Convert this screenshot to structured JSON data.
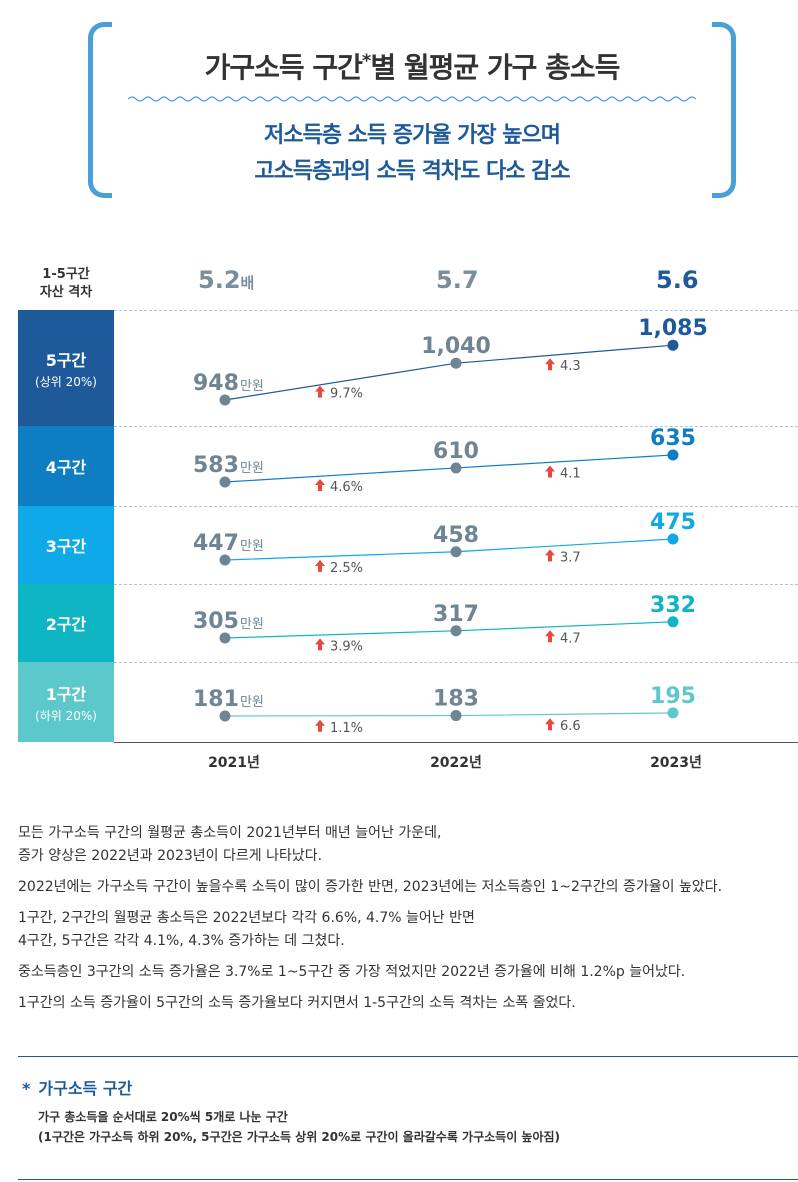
{
  "header": {
    "title_main": "가구소득 구간",
    "title_star": "*",
    "title_rest": "별 월평균 가구 총소득",
    "subtitle_line1": "저소득층 소득 증가율 가장 높으며",
    "subtitle_line2": "고소득층과의 소득 격차도 다소 감소",
    "accent_color": "#4a9fd6",
    "subtitle_color": "#1e5a9a"
  },
  "chart_data": {
    "type": "line",
    "x": [
      "2021년",
      "2022년",
      "2023년"
    ],
    "unit_label": "만원",
    "gap": {
      "label_line1": "1-5구간",
      "label_line2": "자산 격차",
      "values": [
        "5.2",
        "5.7",
        "5.6"
      ],
      "suffix": "배"
    },
    "series": [
      {
        "name": "5구간",
        "note": "(상위 20%)",
        "color": "#1e5a9a",
        "band_color": "#1e5a9a",
        "values": [
          948,
          1040,
          1085
        ],
        "labels": [
          "948",
          "1,040",
          "1,085"
        ],
        "growth": [
          "9.7%",
          "4.3"
        ]
      },
      {
        "name": "4구간",
        "note": "",
        "color": "#0f7dc2",
        "band_color": "#0f7dc2",
        "values": [
          583,
          610,
          635
        ],
        "labels": [
          "583",
          "610",
          "635"
        ],
        "growth": [
          "4.6%",
          "4.1"
        ]
      },
      {
        "name": "3구간",
        "note": "",
        "color": "#10a9e8",
        "band_color": "#10a9e8",
        "values": [
          447,
          458,
          475
        ],
        "labels": [
          "447",
          "458",
          "475"
        ],
        "growth": [
          "2.5%",
          "3.7"
        ]
      },
      {
        "name": "2구간",
        "note": "",
        "color": "#10b5c4",
        "band_color": "#10b5c4",
        "values": [
          305,
          317,
          332
        ],
        "labels": [
          "305",
          "317",
          "332"
        ],
        "growth": [
          "3.9%",
          "4.7"
        ]
      },
      {
        "name": "1구간",
        "note": "(하위 20%)",
        "color": "#5cc8cc",
        "band_color": "#5cc8cc",
        "values": [
          181,
          183,
          195
        ],
        "labels": [
          "181",
          "183",
          "195"
        ],
        "growth": [
          "1.1%",
          "6.6"
        ]
      }
    ],
    "point_color": "#6f8594",
    "arrow_color": "#e8493f"
  },
  "description": {
    "p1_line1": "모든 가구소득 구간의 월평균 총소득이 2021년부터 매년 늘어난 가운데,",
    "p1_line2": "증가 양상은 2022년과 2023년이 다르게 나타났다.",
    "p2": "2022년에는 가구소득 구간이 높을수록 소득이 많이 증가한 반면, 2023년에는 저소득층인 1~2구간의 증가율이 높았다.",
    "p3_line1": "1구간, 2구간의 월평균 총소득은 2022년보다 각각 6.6%, 4.7% 늘어난 반면",
    "p3_line2": "4구간, 5구간은 각각 4.1%, 4.3% 증가하는 데 그쳤다.",
    "p4": "중소득층인 3구간의 소득 증가율은 3.7%로 1~5구간 중 가장 적었지만 2022년 증가율에 비해 1.2%p 늘어났다.",
    "p5": "1구간의 소득 증가율이 5구간의 소득 증가율보다 커지면서 1-5구간의 소득 격차는 소폭 줄었다."
  },
  "footnote": {
    "star": "*",
    "title": "가구소득 구간",
    "line1": "가구 총소득을 순서대로 20%씩 5개로 나눈 구간",
    "line2": "(1구간은 가구소득 하위 20%, 5구간은 가구소득 상위 20%로 구간이 올라갈수록 가구소득이 높아짐)"
  }
}
